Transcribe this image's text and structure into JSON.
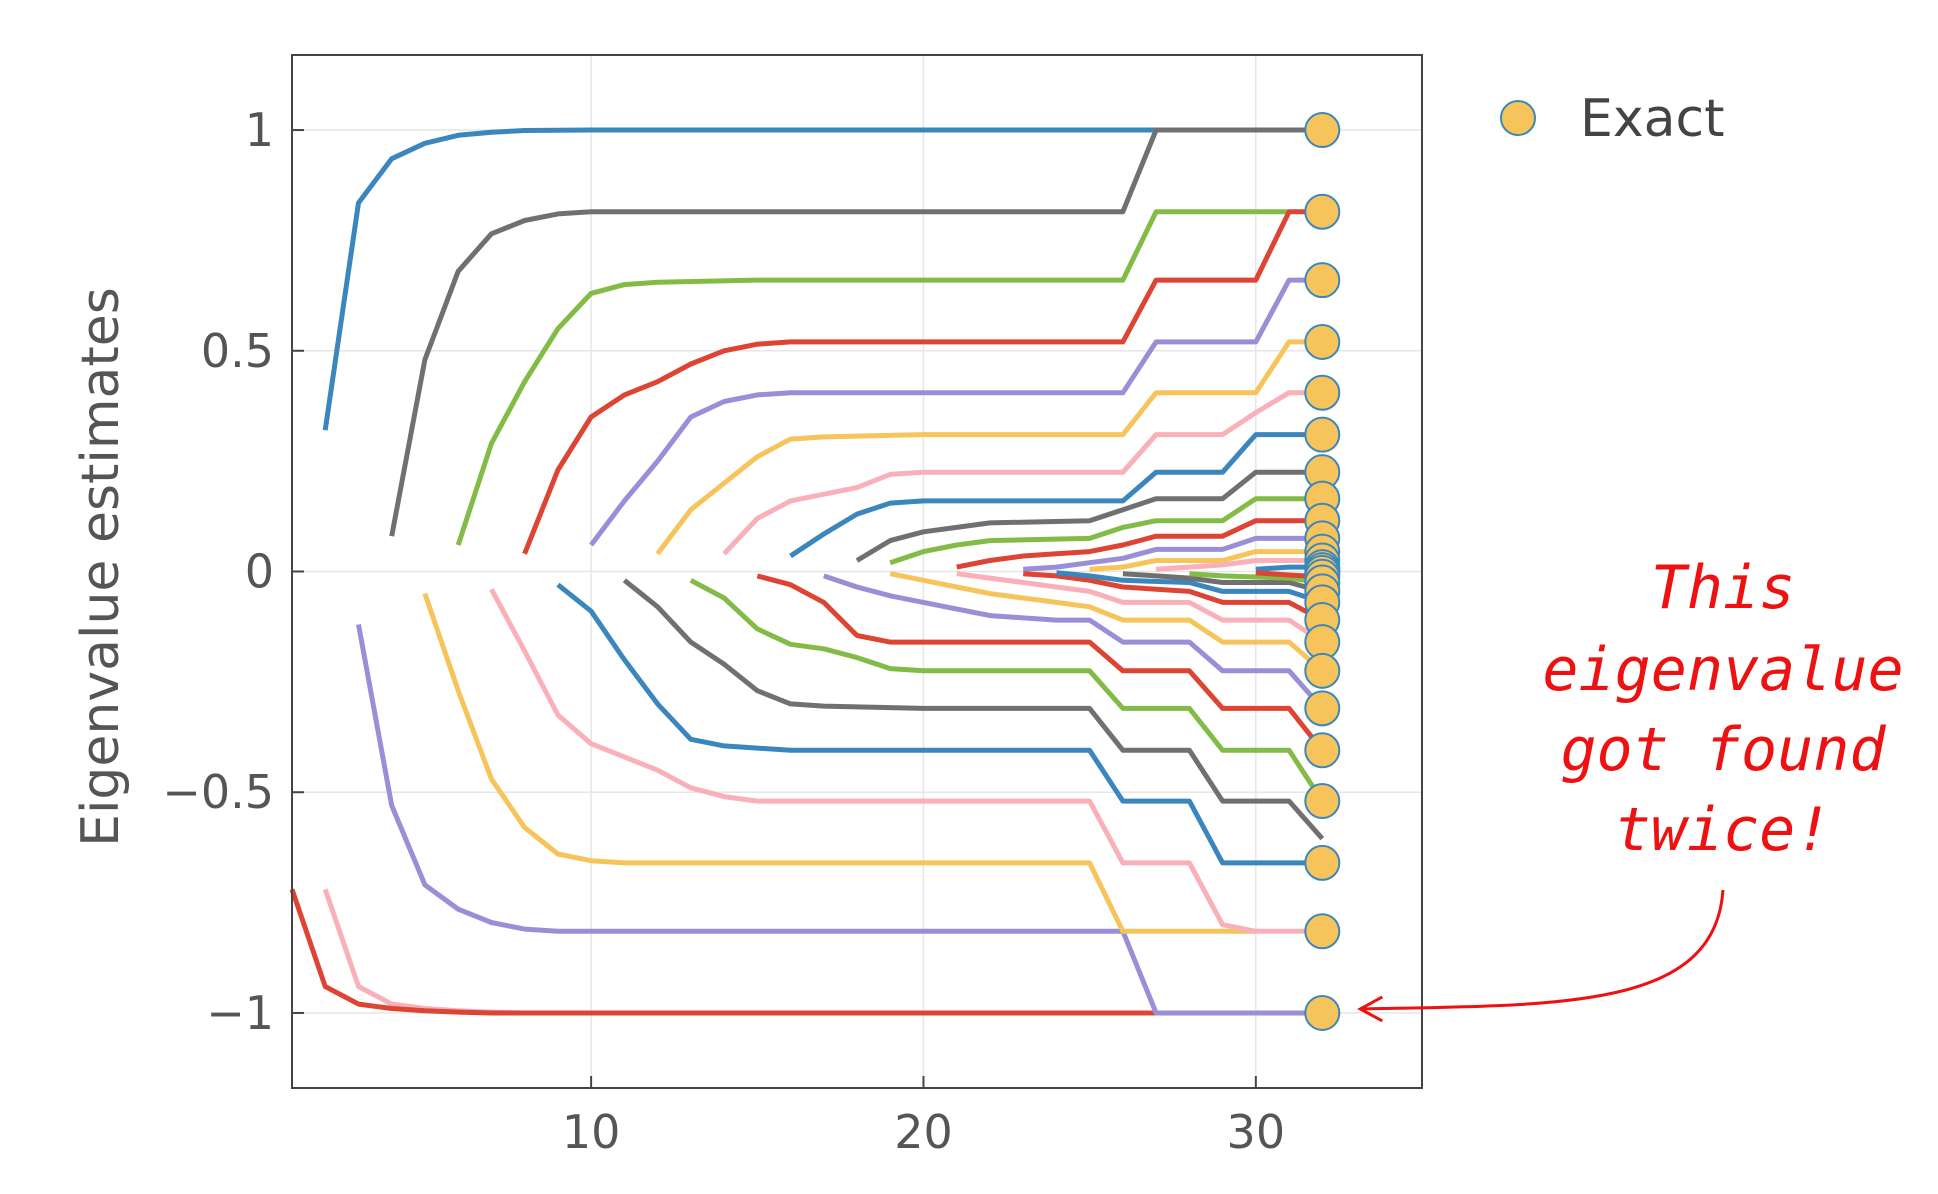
{
  "chart_data": {
    "type": "line",
    "title": "",
    "xlabel": "",
    "ylabel": "Eigenvalue estimates",
    "xlim": [
      1,
      35
    ],
    "ylim": [
      -1.17,
      1.17
    ],
    "xticks": [
      10,
      20,
      30
    ],
    "xtick_labels": [
      "10",
      "20",
      "30"
    ],
    "yticks": [
      -1,
      -0.5,
      0,
      0.5,
      1
    ],
    "ytick_labels": [
      "−1",
      "−0.5",
      "0",
      "0.5",
      "1"
    ],
    "grid": true,
    "legend_position": "top-right",
    "legend": [
      {
        "name": "Exact",
        "marker": "circle",
        "color": "#f6c45a"
      }
    ],
    "colors": [
      "#3b86bd",
      "#707070",
      "#82bb45",
      "#dd4433",
      "#9a8fd6",
      "#f6c45a",
      "#f9b0b8"
    ],
    "series": [
      {
        "color": "#3b86bd",
        "x": [
          2,
          3,
          4,
          5,
          6,
          7,
          8,
          10,
          15,
          20,
          25,
          26,
          27
        ],
        "y": [
          0.32,
          0.835,
          0.935,
          0.97,
          0.988,
          0.995,
          0.999,
          1.0,
          1.0,
          1.0,
          1.0,
          1.0,
          1.0
        ]
      },
      {
        "color": "#707070",
        "x": [
          4,
          5,
          6,
          7,
          8,
          9,
          10,
          15,
          20,
          26,
          27,
          32
        ],
        "y": [
          0.08,
          0.48,
          0.68,
          0.765,
          0.795,
          0.81,
          0.815,
          0.815,
          0.815,
          0.815,
          1.0,
          1.0
        ]
      },
      {
        "color": "#82bb45",
        "x": [
          6,
          7,
          8,
          9,
          10,
          11,
          12,
          15,
          20,
          26,
          27,
          31
        ],
        "y": [
          0.06,
          0.29,
          0.43,
          0.55,
          0.63,
          0.65,
          0.655,
          0.66,
          0.66,
          0.66,
          0.815,
          0.815
        ]
      },
      {
        "color": "#dd4433",
        "x": [
          8,
          9,
          10,
          11,
          12,
          13,
          14,
          15,
          16,
          20,
          26,
          27,
          30,
          31,
          32
        ],
        "y": [
          0.04,
          0.23,
          0.35,
          0.4,
          0.43,
          0.47,
          0.5,
          0.515,
          0.52,
          0.52,
          0.52,
          0.66,
          0.66,
          0.815,
          0.815
        ]
      },
      {
        "color": "#9a8fd6",
        "x": [
          10,
          11,
          12,
          13,
          14,
          15,
          16,
          20,
          26,
          27,
          30,
          31,
          32
        ],
        "y": [
          0.06,
          0.16,
          0.25,
          0.35,
          0.385,
          0.4,
          0.405,
          0.405,
          0.405,
          0.52,
          0.52,
          0.66,
          0.66
        ]
      },
      {
        "color": "#f6c45a",
        "x": [
          12,
          13,
          14,
          15,
          16,
          17,
          20,
          26,
          27,
          30,
          31,
          32
        ],
        "y": [
          0.04,
          0.14,
          0.2,
          0.26,
          0.3,
          0.305,
          0.31,
          0.31,
          0.405,
          0.405,
          0.52,
          0.52
        ]
      },
      {
        "color": "#f9b0b8",
        "x": [
          14,
          15,
          16,
          17,
          18,
          19,
          20,
          26,
          27,
          29,
          30,
          31,
          32
        ],
        "y": [
          0.04,
          0.12,
          0.16,
          0.175,
          0.19,
          0.22,
          0.225,
          0.225,
          0.31,
          0.31,
          0.36,
          0.405,
          0.405
        ]
      },
      {
        "color": "#3b86bd",
        "x": [
          16,
          17,
          18,
          19,
          20,
          26,
          27,
          29,
          30,
          32
        ],
        "y": [
          0.035,
          0.085,
          0.13,
          0.155,
          0.16,
          0.16,
          0.225,
          0.225,
          0.31,
          0.31
        ]
      },
      {
        "color": "#707070",
        "x": [
          18,
          19,
          20,
          21,
          22,
          25,
          26,
          27,
          29,
          30,
          32
        ],
        "y": [
          0.025,
          0.07,
          0.09,
          0.1,
          0.11,
          0.115,
          0.14,
          0.165,
          0.165,
          0.225,
          0.225
        ]
      },
      {
        "color": "#82bb45",
        "x": [
          19,
          20,
          21,
          22,
          25,
          26,
          27,
          29,
          30,
          32
        ],
        "y": [
          0.02,
          0.045,
          0.06,
          0.07,
          0.075,
          0.1,
          0.115,
          0.115,
          0.165,
          0.165
        ]
      },
      {
        "color": "#dd4433",
        "x": [
          21,
          22,
          23,
          24,
          25,
          26,
          27,
          29,
          30,
          32
        ],
        "y": [
          0.01,
          0.025,
          0.035,
          0.04,
          0.045,
          0.06,
          0.08,
          0.08,
          0.115,
          0.115
        ]
      },
      {
        "color": "#9a8fd6",
        "x": [
          23,
          24,
          25,
          26,
          27,
          29,
          30,
          32
        ],
        "y": [
          0.005,
          0.01,
          0.02,
          0.03,
          0.05,
          0.05,
          0.075,
          0.075
        ]
      },
      {
        "color": "#f6c45a",
        "x": [
          25,
          26,
          27,
          29,
          30,
          32
        ],
        "y": [
          0.005,
          0.01,
          0.025,
          0.025,
          0.045,
          0.045
        ]
      },
      {
        "color": "#f9b0b8",
        "x": [
          27,
          28,
          29,
          30,
          32
        ],
        "y": [
          0.005,
          0.01,
          0.015,
          0.025,
          0.025
        ]
      },
      {
        "color": "#3b86bd",
        "x": [
          30,
          31,
          32
        ],
        "y": [
          0.005,
          0.01,
          0.01
        ]
      },
      {
        "color": "#f9b0b8",
        "x": [
          2,
          3,
          4,
          5,
          6,
          7,
          8,
          10,
          15,
          20,
          25,
          26,
          27
        ],
        "y": [
          -0.72,
          -0.94,
          -0.98,
          -0.99,
          -0.995,
          -0.998,
          -1.0,
          -1.0,
          -1.0,
          -1.0,
          -1.0,
          -1.0,
          -1.0
        ]
      },
      {
        "color": "#dd4433",
        "x": [
          1,
          2,
          3,
          4,
          5,
          6,
          7,
          8,
          10,
          15,
          20,
          25,
          27
        ],
        "y": [
          -0.72,
          -0.94,
          -0.98,
          -0.99,
          -0.995,
          -0.998,
          -1.0,
          -1.0,
          -1.0,
          -1.0,
          -1.0,
          -1.0,
          -1.0
        ]
      },
      {
        "color": "#9a8fd6",
        "x": [
          3,
          4,
          5,
          6,
          7,
          8,
          9,
          10,
          15,
          20,
          25,
          26,
          27,
          32
        ],
        "y": [
          -0.12,
          -0.53,
          -0.71,
          -0.765,
          -0.795,
          -0.81,
          -0.815,
          -0.815,
          -0.815,
          -0.815,
          -0.815,
          -0.815,
          -1.0,
          -1.0
        ]
      },
      {
        "color": "#f6c45a",
        "x": [
          5,
          6,
          7,
          8,
          9,
          10,
          11,
          15,
          20,
          25,
          26,
          30
        ],
        "y": [
          -0.05,
          -0.27,
          -0.47,
          -0.58,
          -0.64,
          -0.655,
          -0.66,
          -0.66,
          -0.66,
          -0.66,
          -0.815,
          -0.815
        ]
      },
      {
        "color": "#f9b0b8",
        "x": [
          7,
          8,
          9,
          10,
          11,
          12,
          13,
          14,
          15,
          20,
          25,
          26,
          28,
          29,
          30,
          32
        ],
        "y": [
          -0.04,
          -0.18,
          -0.325,
          -0.39,
          -0.42,
          -0.45,
          -0.49,
          -0.51,
          -0.52,
          -0.52,
          -0.52,
          -0.66,
          -0.66,
          -0.8,
          -0.815,
          -0.815
        ]
      },
      {
        "color": "#3b86bd",
        "x": [
          9,
          10,
          11,
          12,
          13,
          14,
          15,
          16,
          20,
          25,
          26,
          28,
          29,
          32
        ],
        "y": [
          -0.03,
          -0.09,
          -0.2,
          -0.3,
          -0.38,
          -0.395,
          -0.4,
          -0.405,
          -0.405,
          -0.405,
          -0.52,
          -0.52,
          -0.66,
          -0.66
        ]
      },
      {
        "color": "#707070",
        "x": [
          11,
          12,
          13,
          14,
          15,
          16,
          17,
          20,
          25,
          26,
          28,
          29,
          31,
          32
        ],
        "y": [
          -0.02,
          -0.08,
          -0.16,
          -0.21,
          -0.27,
          -0.3,
          -0.305,
          -0.31,
          -0.31,
          -0.405,
          -0.405,
          -0.52,
          -0.52,
          -0.605
        ]
      },
      {
        "color": "#82bb45",
        "x": [
          13,
          14,
          15,
          16,
          17,
          18,
          19,
          20,
          25,
          26,
          28,
          29,
          31,
          32
        ],
        "y": [
          -0.02,
          -0.06,
          -0.13,
          -0.165,
          -0.175,
          -0.195,
          -0.22,
          -0.225,
          -0.225,
          -0.31,
          -0.31,
          -0.405,
          -0.405,
          -0.52
        ]
      },
      {
        "color": "#dd4433",
        "x": [
          15,
          16,
          17,
          18,
          19,
          20,
          25,
          26,
          28,
          29,
          31,
          32
        ],
        "y": [
          -0.01,
          -0.03,
          -0.07,
          -0.145,
          -0.16,
          -0.16,
          -0.16,
          -0.225,
          -0.225,
          -0.31,
          -0.31,
          -0.405
        ]
      },
      {
        "color": "#9a8fd6",
        "x": [
          17,
          18,
          19,
          20,
          21,
          22,
          24,
          25,
          26,
          28,
          29,
          31,
          32
        ],
        "y": [
          -0.01,
          -0.035,
          -0.055,
          -0.07,
          -0.085,
          -0.1,
          -0.11,
          -0.11,
          -0.16,
          -0.16,
          -0.225,
          -0.225,
          -0.31
        ]
      },
      {
        "color": "#f6c45a",
        "x": [
          19,
          20,
          21,
          22,
          23,
          24,
          25,
          26,
          28,
          29,
          31,
          32
        ],
        "y": [
          -0.005,
          -0.02,
          -0.035,
          -0.05,
          -0.06,
          -0.07,
          -0.08,
          -0.11,
          -0.11,
          -0.16,
          -0.16,
          -0.225
        ]
      },
      {
        "color": "#f9b0b8",
        "x": [
          21,
          22,
          23,
          24,
          25,
          26,
          28,
          29,
          31,
          32
        ],
        "y": [
          -0.005,
          -0.015,
          -0.025,
          -0.035,
          -0.045,
          -0.07,
          -0.07,
          -0.11,
          -0.11,
          -0.16
        ]
      },
      {
        "color": "#dd4433",
        "x": [
          23,
          24,
          25,
          26,
          28,
          29,
          31,
          32
        ],
        "y": [
          -0.005,
          -0.01,
          -0.02,
          -0.035,
          -0.045,
          -0.07,
          -0.07,
          -0.11
        ]
      },
      {
        "color": "#3b86bd",
        "x": [
          24,
          25,
          26,
          28,
          29,
          31,
          32
        ],
        "y": [
          -0.003,
          -0.01,
          -0.02,
          -0.025,
          -0.045,
          -0.045,
          -0.07
        ]
      },
      {
        "color": "#707070",
        "x": [
          26,
          27,
          28,
          29,
          31,
          32
        ],
        "y": [
          -0.005,
          -0.01,
          -0.015,
          -0.025,
          -0.025,
          -0.045
        ]
      },
      {
        "color": "#82bb45",
        "x": [
          28,
          29,
          31,
          32
        ],
        "y": [
          -0.005,
          -0.01,
          -0.015,
          -0.025
        ]
      },
      {
        "color": "#dd4433",
        "x": [
          30,
          31,
          32
        ],
        "y": [
          -0.003,
          -0.008,
          -0.012
        ]
      }
    ],
    "exact": {
      "name": "Exact",
      "x": 32,
      "y": [
        1.0,
        0.815,
        0.66,
        0.52,
        0.405,
        0.31,
        0.225,
        0.165,
        0.115,
        0.075,
        0.045,
        0.025,
        0.01,
        0.003,
        -0.003,
        -0.012,
        -0.025,
        -0.045,
        -0.07,
        -0.11,
        -0.16,
        -0.225,
        -0.31,
        -0.405,
        -0.52,
        -0.66,
        -0.815,
        -1.0
      ]
    },
    "annotation": {
      "lines": [
        "This",
        "eigenvalue",
        "got found",
        "twice!"
      ],
      "points_to": {
        "x": 32,
        "y": -1.0
      }
    }
  }
}
